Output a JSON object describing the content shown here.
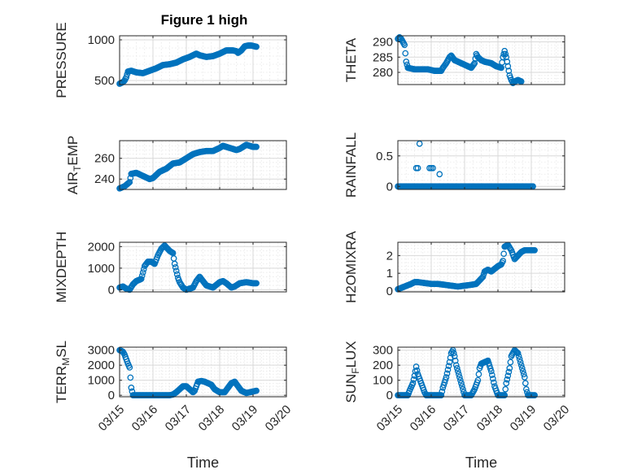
{
  "figure_title": "Figure 1 high",
  "colors": {
    "marker": "#0072BD",
    "axis": "#262626",
    "grid": "#d9d9d9"
  },
  "chart_data": [
    {
      "type": "scatter",
      "panel": "pressure",
      "title": "Figure 1 high",
      "ylabel": "PRESSURE",
      "xlabel": "",
      "xlim": [
        0,
        5
      ],
      "ylim": [
        450,
        1050
      ],
      "yticks": [
        500,
        1000
      ],
      "xticks": [
        0,
        1,
        2,
        3,
        4,
        5
      ],
      "xticklabels": [],
      "grid": true,
      "minor_grid": true,
      "anchors": [
        [
          0.0,
          460
        ],
        [
          0.1,
          480
        ],
        [
          0.15,
          500
        ],
        [
          0.2,
          540
        ],
        [
          0.25,
          610
        ],
        [
          0.35,
          620
        ],
        [
          0.5,
          600
        ],
        [
          0.7,
          590
        ],
        [
          0.9,
          620
        ],
        [
          1.1,
          650
        ],
        [
          1.3,
          690
        ],
        [
          1.5,
          700
        ],
        [
          1.7,
          720
        ],
        [
          1.9,
          760
        ],
        [
          2.1,
          790
        ],
        [
          2.3,
          830
        ],
        [
          2.4,
          810
        ],
        [
          2.6,
          790
        ],
        [
          2.8,
          800
        ],
        [
          3.0,
          830
        ],
        [
          3.2,
          870
        ],
        [
          3.4,
          870
        ],
        [
          3.5,
          860
        ],
        [
          3.55,
          840
        ],
        [
          3.65,
          870
        ],
        [
          3.75,
          920
        ],
        [
          3.85,
          930
        ],
        [
          3.95,
          930
        ],
        [
          4.05,
          920
        ],
        [
          4.1,
          915
        ]
      ]
    },
    {
      "type": "scatter",
      "panel": "theta",
      "ylabel": "THETA",
      "xlabel": "",
      "xlim": [
        0,
        5
      ],
      "ylim": [
        276,
        292
      ],
      "yticks": [
        280,
        285,
        290
      ],
      "xticks": [
        0,
        1,
        2,
        3,
        4,
        5
      ],
      "xticklabels": [],
      "grid": true,
      "minor_grid": true,
      "anchors": [
        [
          0.0,
          291
        ],
        [
          0.05,
          291.5
        ],
        [
          0.1,
          291
        ],
        [
          0.15,
          290
        ],
        [
          0.2,
          289
        ],
        [
          0.25,
          283.5
        ],
        [
          0.3,
          281.5
        ],
        [
          0.5,
          281
        ],
        [
          0.7,
          281
        ],
        [
          0.9,
          281
        ],
        [
          1.1,
          280.5
        ],
        [
          1.3,
          280.5
        ],
        [
          1.35,
          281.5
        ],
        [
          1.45,
          283
        ],
        [
          1.55,
          285
        ],
        [
          1.6,
          285.5
        ],
        [
          1.7,
          284
        ],
        [
          1.8,
          283.5
        ],
        [
          1.9,
          283
        ],
        [
          2.0,
          282.5
        ],
        [
          2.1,
          282
        ],
        [
          2.2,
          281.5
        ],
        [
          2.3,
          283
        ],
        [
          2.35,
          286
        ],
        [
          2.4,
          285
        ],
        [
          2.5,
          284
        ],
        [
          2.6,
          283.5
        ],
        [
          2.8,
          283
        ],
        [
          2.95,
          282
        ],
        [
          3.1,
          281.5
        ],
        [
          3.15,
          285
        ],
        [
          3.2,
          287
        ],
        [
          3.25,
          285
        ],
        [
          3.3,
          282
        ],
        [
          3.35,
          279
        ],
        [
          3.4,
          277.5
        ],
        [
          3.45,
          276.5
        ],
        [
          3.5,
          277
        ],
        [
          3.6,
          277.5
        ],
        [
          3.7,
          277
        ]
      ]
    },
    {
      "type": "scatter",
      "panel": "air_temp",
      "ylabel": "AIR",
      "ylabel_sub": "T",
      "ylabel_rest": "EMP",
      "xlabel": "",
      "xlim": [
        0,
        5
      ],
      "ylim": [
        230,
        277
      ],
      "yticks": [
        240,
        260
      ],
      "xticks": [
        0,
        1,
        2,
        3,
        4,
        5
      ],
      "xticklabels": [],
      "grid": true,
      "minor_grid": true,
      "anchors": [
        [
          0.0,
          231
        ],
        [
          0.15,
          233
        ],
        [
          0.3,
          237
        ],
        [
          0.35,
          245
        ],
        [
          0.5,
          246
        ],
        [
          0.7,
          243
        ],
        [
          0.9,
          240
        ],
        [
          1.0,
          241
        ],
        [
          1.1,
          244
        ],
        [
          1.2,
          247
        ],
        [
          1.4,
          250
        ],
        [
          1.6,
          255
        ],
        [
          1.8,
          256
        ],
        [
          2.0,
          260
        ],
        [
          2.2,
          264
        ],
        [
          2.4,
          266
        ],
        [
          2.6,
          267
        ],
        [
          2.8,
          267
        ],
        [
          3.0,
          270
        ],
        [
          3.1,
          272
        ],
        [
          3.2,
          271
        ],
        [
          3.4,
          269
        ],
        [
          3.5,
          268
        ],
        [
          3.6,
          269
        ],
        [
          3.7,
          271
        ],
        [
          3.8,
          273
        ],
        [
          3.9,
          272
        ],
        [
          4.0,
          271
        ],
        [
          4.1,
          271
        ]
      ]
    },
    {
      "type": "scatter",
      "panel": "rainfall",
      "ylabel": "RAINFALL",
      "xlabel": "",
      "xlim": [
        0,
        5
      ],
      "ylim": [
        -0.05,
        0.75
      ],
      "yticks": [
        0,
        0.5
      ],
      "xticks": [
        0,
        1,
        2,
        3,
        4,
        5
      ],
      "xticklabels": [],
      "grid": true,
      "minor_grid": true,
      "zero_range": [
        0.0,
        4.05
      ],
      "spikes": [
        [
          0.55,
          0.3
        ],
        [
          0.6,
          0.3
        ],
        [
          0.65,
          0.7
        ],
        [
          0.95,
          0.3
        ],
        [
          1.0,
          0.3
        ],
        [
          1.05,
          0.3
        ],
        [
          1.25,
          0.2
        ]
      ]
    },
    {
      "type": "scatter",
      "panel": "mixdepth",
      "ylabel": "MIXDEPTH",
      "xlabel": "",
      "xlim": [
        0,
        5
      ],
      "ylim": [
        -100,
        2200
      ],
      "yticks": [
        0,
        1000,
        2000
      ],
      "xticks": [
        0,
        1,
        2,
        3,
        4,
        5
      ],
      "xticklabels": [],
      "grid": true,
      "minor_grid": true,
      "anchors": [
        [
          0.0,
          100
        ],
        [
          0.1,
          150
        ],
        [
          0.2,
          50
        ],
        [
          0.3,
          0
        ],
        [
          0.4,
          250
        ],
        [
          0.5,
          400
        ],
        [
          0.65,
          500
        ],
        [
          0.75,
          1100
        ],
        [
          0.85,
          1300
        ],
        [
          0.95,
          1300
        ],
        [
          1.05,
          1200
        ],
        [
          1.15,
          1600
        ],
        [
          1.25,
          1900
        ],
        [
          1.35,
          2050
        ],
        [
          1.5,
          1800
        ],
        [
          1.6,
          1700
        ],
        [
          1.65,
          1200
        ],
        [
          1.75,
          550
        ],
        [
          1.8,
          350
        ],
        [
          1.9,
          100
        ],
        [
          2.0,
          0
        ],
        [
          2.2,
          100
        ],
        [
          2.3,
          400
        ],
        [
          2.4,
          600
        ],
        [
          2.5,
          400
        ],
        [
          2.6,
          200
        ],
        [
          2.8,
          100
        ],
        [
          3.0,
          350
        ],
        [
          3.1,
          400
        ],
        [
          3.2,
          300
        ],
        [
          3.35,
          100
        ],
        [
          3.45,
          150
        ],
        [
          3.6,
          300
        ],
        [
          3.8,
          350
        ],
        [
          4.0,
          300
        ],
        [
          4.1,
          300
        ]
      ]
    },
    {
      "type": "scatter",
      "panel": "h2omixra",
      "ylabel": "H2OMIXRA",
      "xlabel": "",
      "xlim": [
        0,
        5
      ],
      "ylim": [
        -0.05,
        2.75
      ],
      "yticks": [
        0,
        1,
        2
      ],
      "xticks": [
        0,
        1,
        2,
        3,
        4,
        5
      ],
      "xticklabels": [],
      "grid": true,
      "minor_grid": true,
      "anchors": [
        [
          0.0,
          0.1
        ],
        [
          0.2,
          0.25
        ],
        [
          0.4,
          0.4
        ],
        [
          0.5,
          0.5
        ],
        [
          0.6,
          0.5
        ],
        [
          0.8,
          0.45
        ],
        [
          1.0,
          0.4
        ],
        [
          1.2,
          0.4
        ],
        [
          1.4,
          0.35
        ],
        [
          1.6,
          0.3
        ],
        [
          1.8,
          0.25
        ],
        [
          2.0,
          0.3
        ],
        [
          2.2,
          0.35
        ],
        [
          2.35,
          0.4
        ],
        [
          2.45,
          0.6
        ],
        [
          2.55,
          0.8
        ],
        [
          2.6,
          1.1
        ],
        [
          2.7,
          1.2
        ],
        [
          2.8,
          1.1
        ],
        [
          2.9,
          1.25
        ],
        [
          3.0,
          1.4
        ],
        [
          3.1,
          1.5
        ],
        [
          3.15,
          1.7
        ],
        [
          3.2,
          2.5
        ],
        [
          3.3,
          2.6
        ],
        [
          3.4,
          2.3
        ],
        [
          3.5,
          1.8
        ],
        [
          3.6,
          2.0
        ],
        [
          3.7,
          2.2
        ],
        [
          3.8,
          2.3
        ],
        [
          4.0,
          2.3
        ],
        [
          4.1,
          2.3
        ]
      ]
    },
    {
      "type": "scatter",
      "panel": "terr_msl",
      "ylabel": "TERR",
      "ylabel_sub": "M",
      "ylabel_rest": "SL",
      "xlabel": "Time",
      "xlim": [
        0,
        5
      ],
      "ylim": [
        -100,
        3200
      ],
      "yticks": [
        0,
        1000,
        2000,
        3000
      ],
      "xticks": [
        0,
        1,
        2,
        3,
        4,
        5
      ],
      "xticklabels": [
        "03/15",
        "03/16",
        "03/17",
        "03/18",
        "03/19",
        "03/20"
      ],
      "grid": true,
      "minor_grid": true,
      "anchors": [
        [
          0.0,
          3000
        ],
        [
          0.1,
          2900
        ],
        [
          0.15,
          2700
        ],
        [
          0.2,
          2400
        ],
        [
          0.25,
          2100
        ],
        [
          0.3,
          1850
        ],
        [
          0.35,
          500
        ],
        [
          0.4,
          0
        ],
        [
          0.6,
          0
        ],
        [
          0.8,
          0
        ],
        [
          1.0,
          0
        ],
        [
          1.2,
          0
        ],
        [
          1.4,
          0
        ],
        [
          1.5,
          0
        ],
        [
          1.6,
          50
        ],
        [
          1.7,
          200
        ],
        [
          1.8,
          400
        ],
        [
          1.9,
          600
        ],
        [
          2.0,
          600
        ],
        [
          2.1,
          400
        ],
        [
          2.2,
          200
        ],
        [
          2.25,
          300
        ],
        [
          2.3,
          600
        ],
        [
          2.35,
          900
        ],
        [
          2.45,
          950
        ],
        [
          2.55,
          900
        ],
        [
          2.65,
          800
        ],
        [
          2.75,
          700
        ],
        [
          2.85,
          400
        ],
        [
          3.0,
          200
        ],
        [
          3.15,
          200
        ],
        [
          3.25,
          500
        ],
        [
          3.35,
          800
        ],
        [
          3.45,
          900
        ],
        [
          3.55,
          600
        ],
        [
          3.65,
          300
        ],
        [
          3.8,
          150
        ],
        [
          3.9,
          200
        ],
        [
          4.0,
          250
        ],
        [
          4.1,
          300
        ]
      ]
    },
    {
      "type": "scatter",
      "panel": "sun_flux",
      "ylabel": "SUN",
      "ylabel_sub": "F",
      "ylabel_rest": "LUX",
      "xlabel": "Time",
      "xlim": [
        0,
        5
      ],
      "ylim": [
        -10,
        320
      ],
      "yticks": [
        0,
        100,
        200,
        300
      ],
      "xticks": [
        0,
        1,
        2,
        3,
        4,
        5
      ],
      "xticklabels": [
        "03/15",
        "03/16",
        "03/17",
        "03/18",
        "03/19",
        "03/20"
      ],
      "grid": true,
      "minor_grid": true,
      "anchors": [
        [
          0.0,
          0
        ],
        [
          0.1,
          0
        ],
        [
          0.2,
          0
        ],
        [
          0.3,
          0
        ],
        [
          0.35,
          30
        ],
        [
          0.45,
          80
        ],
        [
          0.5,
          130
        ],
        [
          0.55,
          190
        ],
        [
          0.6,
          140
        ],
        [
          0.7,
          80
        ],
        [
          0.8,
          20
        ],
        [
          0.85,
          0
        ],
        [
          1.0,
          0
        ],
        [
          1.1,
          0
        ],
        [
          1.2,
          0
        ],
        [
          1.3,
          0
        ],
        [
          1.35,
          50
        ],
        [
          1.45,
          120
        ],
        [
          1.55,
          220
        ],
        [
          1.6,
          280
        ],
        [
          1.65,
          300
        ],
        [
          1.7,
          260
        ],
        [
          1.75,
          200
        ],
        [
          1.85,
          120
        ],
        [
          1.95,
          40
        ],
        [
          2.0,
          0
        ],
        [
          2.1,
          0
        ],
        [
          2.2,
          0
        ],
        [
          2.3,
          40
        ],
        [
          2.4,
          100
        ],
        [
          2.45,
          180
        ],
        [
          2.5,
          210
        ],
        [
          2.6,
          220
        ],
        [
          2.7,
          230
        ],
        [
          2.8,
          160
        ],
        [
          2.9,
          60
        ],
        [
          3.0,
          0
        ],
        [
          3.1,
          0
        ],
        [
          3.2,
          0
        ],
        [
          3.25,
          80
        ],
        [
          3.35,
          180
        ],
        [
          3.4,
          260
        ],
        [
          3.5,
          300
        ],
        [
          3.55,
          290
        ],
        [
          3.6,
          280
        ],
        [
          3.7,
          200
        ],
        [
          3.8,
          120
        ],
        [
          3.85,
          40
        ],
        [
          3.9,
          0
        ],
        [
          4.0,
          0
        ],
        [
          4.1,
          0
        ]
      ]
    }
  ]
}
